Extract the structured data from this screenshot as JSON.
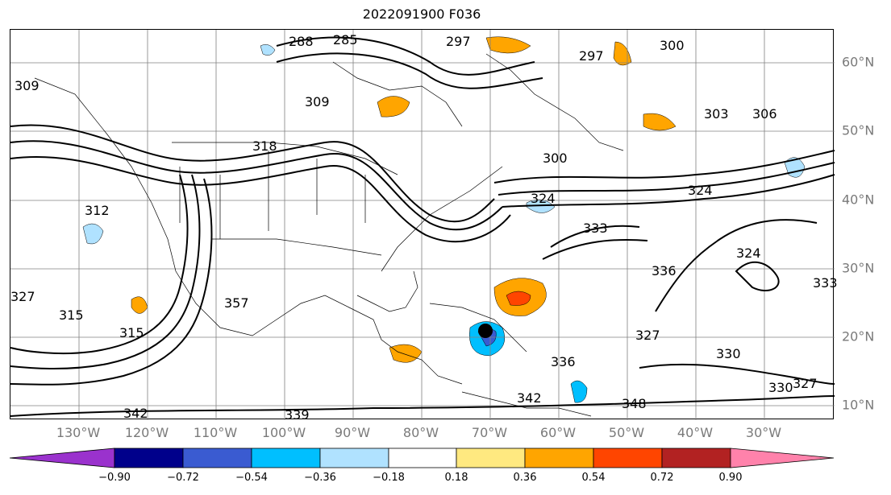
{
  "title": "2022091900 F036",
  "map": {
    "lon_labels": [
      "130°W",
      "120°W",
      "110°W",
      "100°W",
      "90°W",
      "80°W",
      "70°W",
      "60°W",
      "50°W",
      "40°W",
      "30°W"
    ],
    "lat_labels": [
      "60°N",
      "50°N",
      "40°N",
      "30°N",
      "20°N",
      "10°N"
    ],
    "contour_labels": [
      "309",
      "285",
      "288",
      "297",
      "300",
      "303",
      "306",
      "309",
      "318",
      "300",
      "324",
      "312",
      "315",
      "324",
      "333",
      "336",
      "327",
      "324",
      "315",
      "327",
      "330",
      "336",
      "342",
      "339",
      "342",
      "348",
      "357",
      "330",
      "327",
      "333",
      "297"
    ],
    "storm_marker": "storm-center"
  },
  "colorbar": {
    "ticks": [
      "−0.90",
      "−0.72",
      "−0.54",
      "−0.36",
      "−0.18",
      "0.18",
      "0.36",
      "0.54",
      "0.72",
      "0.90"
    ],
    "colors": [
      "#9a32cd",
      "#00008b",
      "#3a5bd1",
      "#00bfff",
      "#b0e2ff",
      "#ffffff",
      "#ffe980",
      "#ffa500",
      "#ff4500",
      "#b22222",
      "#ff82ab"
    ]
  }
}
